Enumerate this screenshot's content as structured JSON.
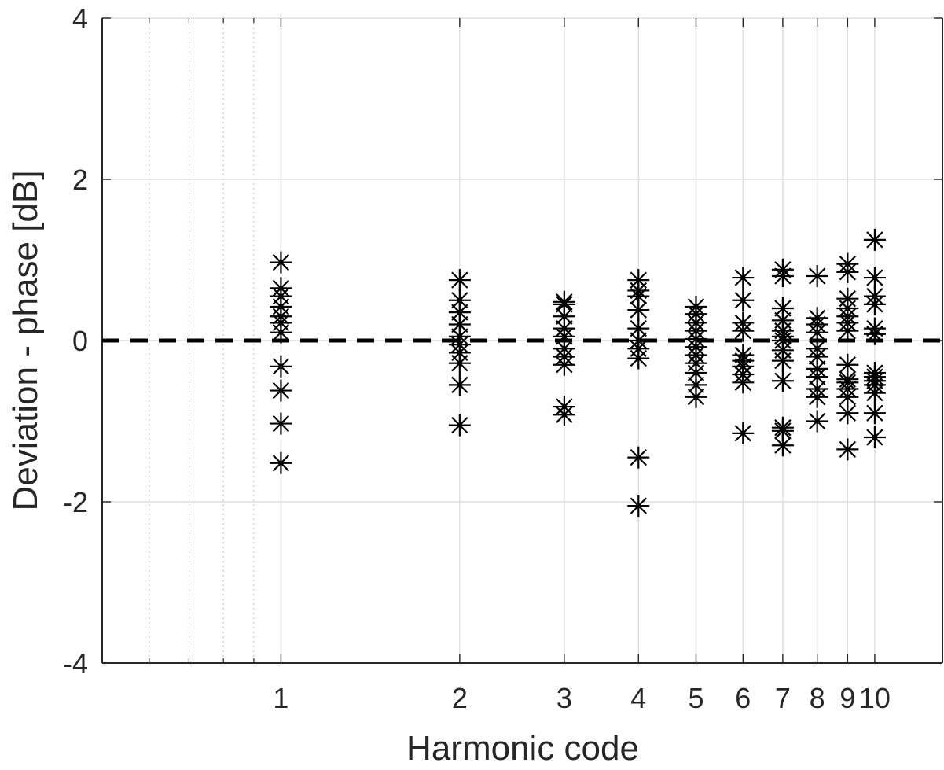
{
  "chart_data": {
    "type": "scatter",
    "title": "",
    "xlabel": "Harmonic code",
    "ylabel": "Deviation - phase [dB]",
    "x_scale": "log",
    "xlim": [
      0.5,
      13.0
    ],
    "ylim": [
      -4,
      4
    ],
    "x_ticks": [
      1,
      2,
      3,
      4,
      5,
      6,
      7,
      8,
      9,
      10
    ],
    "x_tick_labels": [
      "1",
      "2",
      "3",
      "4",
      "5",
      "6",
      "7",
      "8",
      "9",
      "10"
    ],
    "y_ticks": [
      -4,
      -2,
      0,
      2,
      4
    ],
    "y_tick_labels": [
      "-4",
      "-2",
      "0",
      "2",
      "4"
    ],
    "grid": true,
    "marker": "asterisk",
    "marker_color": "#000000",
    "reference_line": {
      "y": 0,
      "style": "dashed",
      "color": "#000000"
    },
    "series": [
      {
        "points": [
          [
            1,
            0.97
          ],
          [
            1,
            0.65
          ],
          [
            1,
            0.55
          ],
          [
            1,
            0.42
          ],
          [
            1,
            0.3
          ],
          [
            1,
            0.22
          ],
          [
            1,
            0.1
          ],
          [
            1,
            -0.32
          ],
          [
            1,
            -0.62
          ],
          [
            1,
            -1.03
          ],
          [
            1,
            -1.52
          ],
          [
            2,
            0.75
          ],
          [
            2,
            0.5
          ],
          [
            2,
            0.35
          ],
          [
            2,
            0.2
          ],
          [
            2,
            0.05
          ],
          [
            2,
            -0.05
          ],
          [
            2,
            -0.15
          ],
          [
            2,
            -0.28
          ],
          [
            2,
            -0.55
          ],
          [
            2,
            -1.05
          ],
          [
            3,
            0.48
          ],
          [
            3,
            0.45
          ],
          [
            3,
            0.3
          ],
          [
            3,
            0.15
          ],
          [
            3,
            0.05
          ],
          [
            3,
            -0.1
          ],
          [
            3,
            -0.2
          ],
          [
            3,
            -0.3
          ],
          [
            3,
            -0.82
          ],
          [
            3,
            -0.92
          ],
          [
            4,
            0.75
          ],
          [
            4,
            0.62
          ],
          [
            4,
            0.55
          ],
          [
            4,
            0.38
          ],
          [
            4,
            0.15
          ],
          [
            4,
            0.0
          ],
          [
            4,
            -0.1
          ],
          [
            4,
            -0.22
          ],
          [
            4,
            -1.45
          ],
          [
            4,
            -2.05
          ],
          [
            5,
            0.42
          ],
          [
            5,
            0.33
          ],
          [
            5,
            0.22
          ],
          [
            5,
            0.12
          ],
          [
            5,
            0.02
          ],
          [
            5,
            -0.08
          ],
          [
            5,
            -0.18
          ],
          [
            5,
            -0.28
          ],
          [
            5,
            -0.4
          ],
          [
            5,
            -0.55
          ],
          [
            5,
            -0.7
          ],
          [
            6,
            0.78
          ],
          [
            6,
            0.5
          ],
          [
            6,
            0.22
          ],
          [
            6,
            0.12
          ],
          [
            6,
            -0.18
          ],
          [
            6,
            -0.25
          ],
          [
            6,
            -0.32
          ],
          [
            6,
            -0.42
          ],
          [
            6,
            -0.52
          ],
          [
            6,
            -1.15
          ],
          [
            7,
            0.88
          ],
          [
            7,
            0.8
          ],
          [
            7,
            0.4
          ],
          [
            7,
            0.25
          ],
          [
            7,
            0.12
          ],
          [
            7,
            0.05
          ],
          [
            7,
            0.0
          ],
          [
            7,
            -0.12
          ],
          [
            7,
            -0.25
          ],
          [
            7,
            -0.5
          ],
          [
            7,
            -1.08
          ],
          [
            7,
            -1.12
          ],
          [
            7,
            -1.3
          ],
          [
            8,
            0.8
          ],
          [
            8,
            0.28
          ],
          [
            8,
            0.2
          ],
          [
            8,
            0.1
          ],
          [
            8,
            -0.1
          ],
          [
            8,
            -0.2
          ],
          [
            8,
            -0.35
          ],
          [
            8,
            -0.45
          ],
          [
            8,
            -0.6
          ],
          [
            8,
            -0.7
          ],
          [
            8,
            -1.0
          ],
          [
            9,
            0.95
          ],
          [
            9,
            0.85
          ],
          [
            9,
            0.52
          ],
          [
            9,
            0.4
          ],
          [
            9,
            0.3
          ],
          [
            9,
            0.22
          ],
          [
            9,
            0.12
          ],
          [
            9,
            -0.3
          ],
          [
            9,
            -0.48
          ],
          [
            9,
            -0.52
          ],
          [
            9,
            -0.6
          ],
          [
            9,
            -0.7
          ],
          [
            9,
            -0.9
          ],
          [
            9,
            -1.35
          ],
          [
            10,
            1.25
          ],
          [
            10,
            0.78
          ],
          [
            10,
            0.55
          ],
          [
            10,
            0.45
          ],
          [
            10,
            0.15
          ],
          [
            10,
            0.08
          ],
          [
            10,
            -0.4
          ],
          [
            10,
            -0.45
          ],
          [
            10,
            -0.5
          ],
          [
            10,
            -0.55
          ],
          [
            10,
            -0.65
          ],
          [
            10,
            -0.9
          ],
          [
            10,
            -1.2
          ]
        ]
      }
    ]
  }
}
